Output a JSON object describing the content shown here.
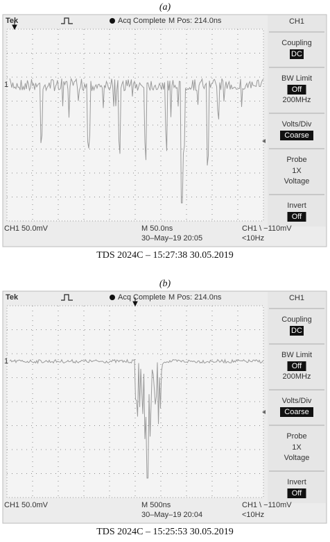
{
  "panels": [
    {
      "label": "(a)",
      "header": {
        "brand": "Tek",
        "status": "Acq Complete",
        "position": "M Pos: 214.0ns"
      },
      "marker": "1",
      "menu": {
        "title": "CH1",
        "groups": [
          {
            "title": "Coupling",
            "value": "DC"
          },
          {
            "title": "BW Limit",
            "value": "Off",
            "note": "200MHz"
          },
          {
            "title": "Volts/Div",
            "value": "Coarse"
          },
          {
            "title": "Probe",
            "lines": [
              "1X",
              "Voltage"
            ]
          },
          {
            "title": "Invert",
            "value": "Off"
          }
        ]
      },
      "footer": {
        "channel": "CH1  50.0mV",
        "timebase": "M 50.0ns",
        "date": "30–May–19 20:05",
        "trigger": "CH1 \\ −110mV",
        "frequency": "<10Hz"
      },
      "caption": "TDS 2024C – 15:27:38 30.05.2019"
    },
    {
      "label": "(b)",
      "header": {
        "brand": "Tek",
        "status": "Acq Complete",
        "position": "M Pos: 214.0ns"
      },
      "marker": "1",
      "menu": {
        "title": "CH1",
        "groups": [
          {
            "title": "Coupling",
            "value": "DC"
          },
          {
            "title": "BW Limit",
            "value": "Off",
            "note": "200MHz"
          },
          {
            "title": "Volts/Div",
            "value": "Coarse"
          },
          {
            "title": "Probe",
            "lines": [
              "1X",
              "Voltage"
            ]
          },
          {
            "title": "Invert",
            "value": "Off"
          }
        ]
      },
      "footer": {
        "channel": "CH1  50.0mV",
        "timebase": "M 500ns",
        "date": "30–May–19 20:04",
        "trigger": "CH1 \\ −110mV",
        "frequency": "<10Hz"
      },
      "caption": "TDS 2024C – 15:25:53 30.05.2019"
    }
  ]
}
